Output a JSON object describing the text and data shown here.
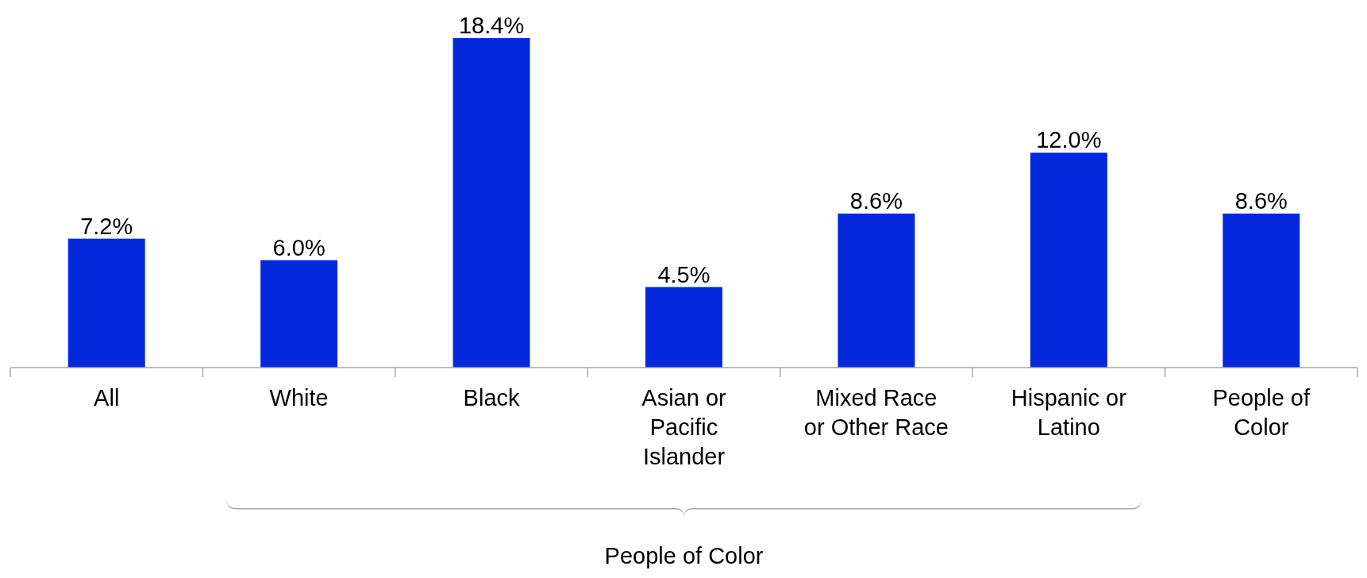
{
  "chart_data": {
    "type": "bar",
    "categories": [
      "All",
      "White",
      "Black",
      "Asian or\nPacific\nIslander",
      "Mixed Race\nor Other Race",
      "Hispanic or\nLatino",
      "People of\nColor"
    ],
    "values": [
      7.2,
      6.0,
      18.4,
      4.5,
      8.6,
      12.0,
      8.6
    ],
    "value_labels": [
      "7.2%",
      "6.0%",
      "18.4%",
      "4.5%",
      "8.6%",
      "12.0%",
      "8.6%"
    ],
    "color": "#0429dc",
    "annotations": [
      "People of Color"
    ]
  }
}
